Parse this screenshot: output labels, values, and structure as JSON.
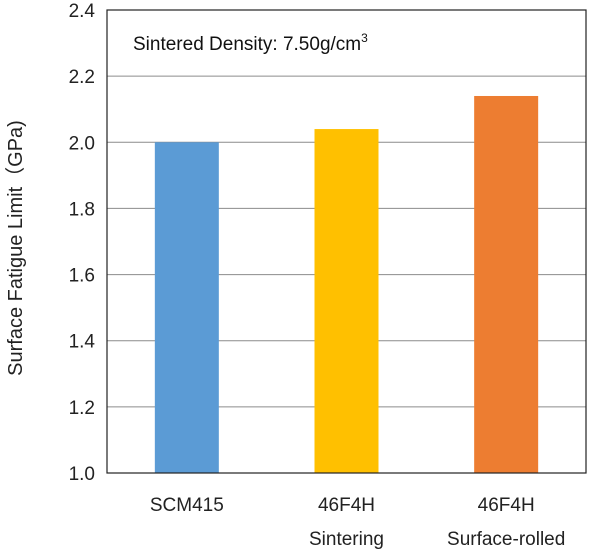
{
  "chart_data": {
    "type": "bar",
    "title": "",
    "xlabel": "",
    "ylabel": "Surface Fatigue Limit（GPa)",
    "ylim": [
      1.0,
      2.4
    ],
    "yticks": [
      "1.0",
      "1.2",
      "1.4",
      "1.6",
      "1.8",
      "2.0",
      "2.2",
      "2.4"
    ],
    "grid": true,
    "annotation": {
      "text": "Sintered Density: 7.50g/cm",
      "superscript": "3"
    },
    "categories": [
      {
        "line1": "SCM415",
        "line2": ""
      },
      {
        "line1": "46F4H",
        "line2": "Sintering"
      },
      {
        "line1": "46F4H",
        "line2": "Surface-rolled"
      }
    ],
    "values": [
      2.0,
      2.04,
      2.14
    ],
    "colors": [
      "#5b9bd5",
      "#ffc000",
      "#ed7d31"
    ]
  }
}
